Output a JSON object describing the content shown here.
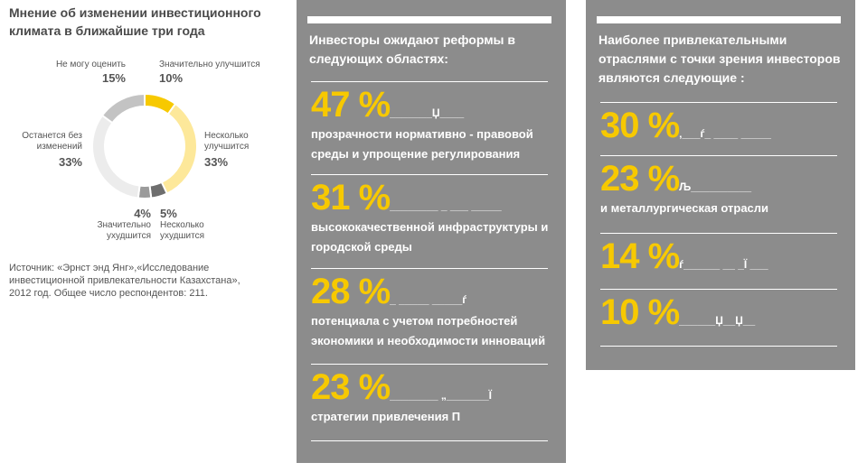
{
  "chart_data": {
    "type": "donut",
    "title": "Мнение об изменении инвестиционного климата в ближайшие три года",
    "categories": [
      "Значительно улучшится",
      "Несколько улучшится",
      "Несколько ухудшится",
      "Значительно ухудшится",
      "Останется без изменений",
      "Не могу оценить"
    ],
    "values": [
      10,
      33,
      5,
      4,
      33,
      15
    ],
    "value_labels": [
      "10%",
      "33%",
      "5%",
      "4%",
      "33%",
      "15%"
    ],
    "colors": [
      "#f7c900",
      "#fde89a",
      "#6e6e6e",
      "#9b9b9b",
      "#ececec",
      "#c3c3c3"
    ]
  },
  "source": "Источник: «Эрнст энд Янг»,«Исследование инвестиционной привлекательности Казахстана», 2012 год. Общее число респондентов: 211.",
  "panel_left": {
    "heading": "Инвесторы ожидают реформы в следующих областях:",
    "items": [
      {
        "value": "47 %",
        "filler": "_______Џ____",
        "text": "прозрачности нормативно - правовой среды и упрощение регулирования"
      },
      {
        "value": "31 %",
        "filler": "________ _ ___    _____",
        "text": "высококачественной инфраструктуры и городской среды"
      },
      {
        "value": "28 %",
        "filler": "_ _____ _____ѓ",
        "text": "потенциала с учетом потребностей экономики и необходимости инноваций"
      },
      {
        "value": "23 %",
        "filler": "________ „_______Ї",
        "text": "стратегии привлечения П"
      }
    ]
  },
  "panel_right": {
    "heading": "Наиболее привлекательными отраслями с точки зрения инвесторов являются следующие :",
    "items": [
      {
        "value": "30 %",
        "filler": "‚___ѓ_      ____ _____",
        "text": ""
      },
      {
        "value": "23 %",
        "filler": "Љ__________",
        "text": "и металлургическая отрасли"
      },
      {
        "value": "14 %",
        "filler": "ѓ______ __        _Ї ___",
        "text": ""
      },
      {
        "value": "10 %",
        "filler": "______Џ__Џ__",
        "text": ""
      }
    ]
  }
}
